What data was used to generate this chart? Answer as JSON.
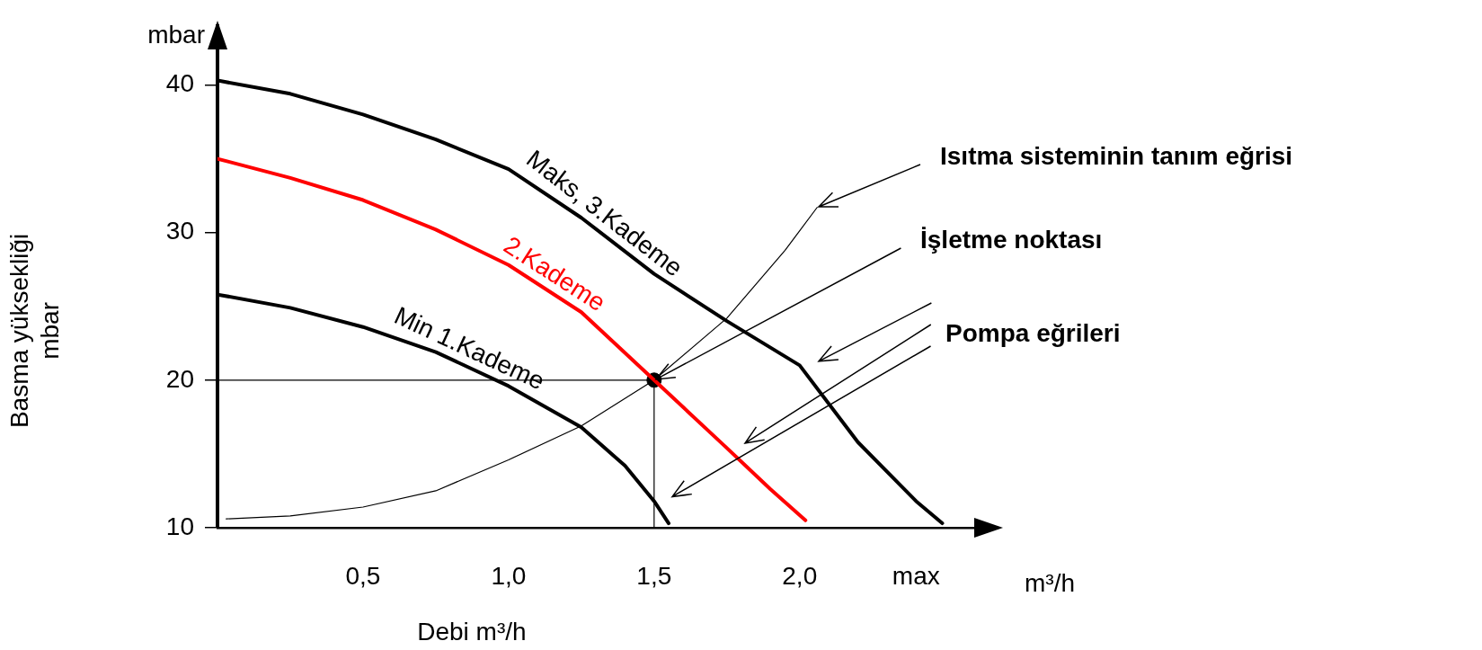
{
  "chart_data": {
    "type": "line",
    "xlabel": "Debi m³/h",
    "ylabel": "Basma yüksekliği\nmbar",
    "xlim": [
      0,
      2.68
    ],
    "ylim": [
      10,
      44
    ],
    "xticks": [
      {
        "value": 0.5,
        "label": "0,5"
      },
      {
        "value": 1.0,
        "label": "1,0"
      },
      {
        "value": 1.5,
        "label": "1,5"
      },
      {
        "value": 2.0,
        "label": "2,0"
      },
      {
        "value": 2.4,
        "label": "max"
      }
    ],
    "yticks": [
      10,
      20,
      30,
      40
    ],
    "grid": false,
    "legend": false,
    "marker": "none",
    "annotations": [
      {
        "text": "Isıtma sisteminin tanım eğrisi",
        "x": 2.06,
        "y": 31.7
      },
      {
        "text": "İşletme noktası",
        "x": 1.5,
        "y": 20
      },
      "Pompa eğrileri",
      "mbar",
      "m³/h"
    ],
    "series": [
      {
        "name": "Maks, 3.Kademe",
        "color": "#000000",
        "x": [
          0,
          0.25,
          0.5,
          0.75,
          1.0,
          1.25,
          1.5,
          1.75,
          2.0,
          2.2,
          2.4,
          2.49
        ],
        "values": [
          40.3,
          39.4,
          38.0,
          36.3,
          34.3,
          31.0,
          27.2,
          24.0,
          21.0,
          15.8,
          11.8,
          10.3
        ]
      },
      {
        "name": "2.Kademe",
        "color": "#ff0000",
        "x": [
          0,
          0.25,
          0.5,
          0.75,
          1.0,
          1.25,
          1.5,
          1.75,
          1.9,
          2.02
        ],
        "values": [
          35.0,
          33.7,
          32.2,
          30.2,
          27.8,
          24.6,
          20.0,
          15.4,
          12.6,
          10.5
        ]
      },
      {
        "name": "Min 1.Kademe",
        "color": "#000000",
        "x": [
          0,
          0.25,
          0.5,
          0.75,
          1.0,
          1.25,
          1.4,
          1.5,
          1.55
        ],
        "values": [
          25.8,
          24.9,
          23.6,
          21.9,
          19.6,
          16.8,
          14.2,
          11.8,
          10.3
        ]
      },
      {
        "color": "#000000",
        "x": [
          0.03,
          0.25,
          0.5,
          0.75,
          1.0,
          1.25,
          1.5,
          1.75,
          1.95,
          2.06
        ],
        "values": [
          10.6,
          10.8,
          11.4,
          12.5,
          14.6,
          16.9,
          20.0,
          24.2,
          28.8,
          31.7
        ]
      },
      {
        "color": "#000000",
        "x": [
          0,
          1.5
        ],
        "values": [
          20,
          20
        ]
      },
      {
        "color": "#000000",
        "x": [
          1.5,
          1.5
        ],
        "values": [
          10,
          20
        ]
      },
      {
        "type": "scatter",
        "marker": "circle",
        "color": "#000000",
        "x": [
          1.5
        ],
        "values": [
          20
        ]
      }
    ]
  }
}
